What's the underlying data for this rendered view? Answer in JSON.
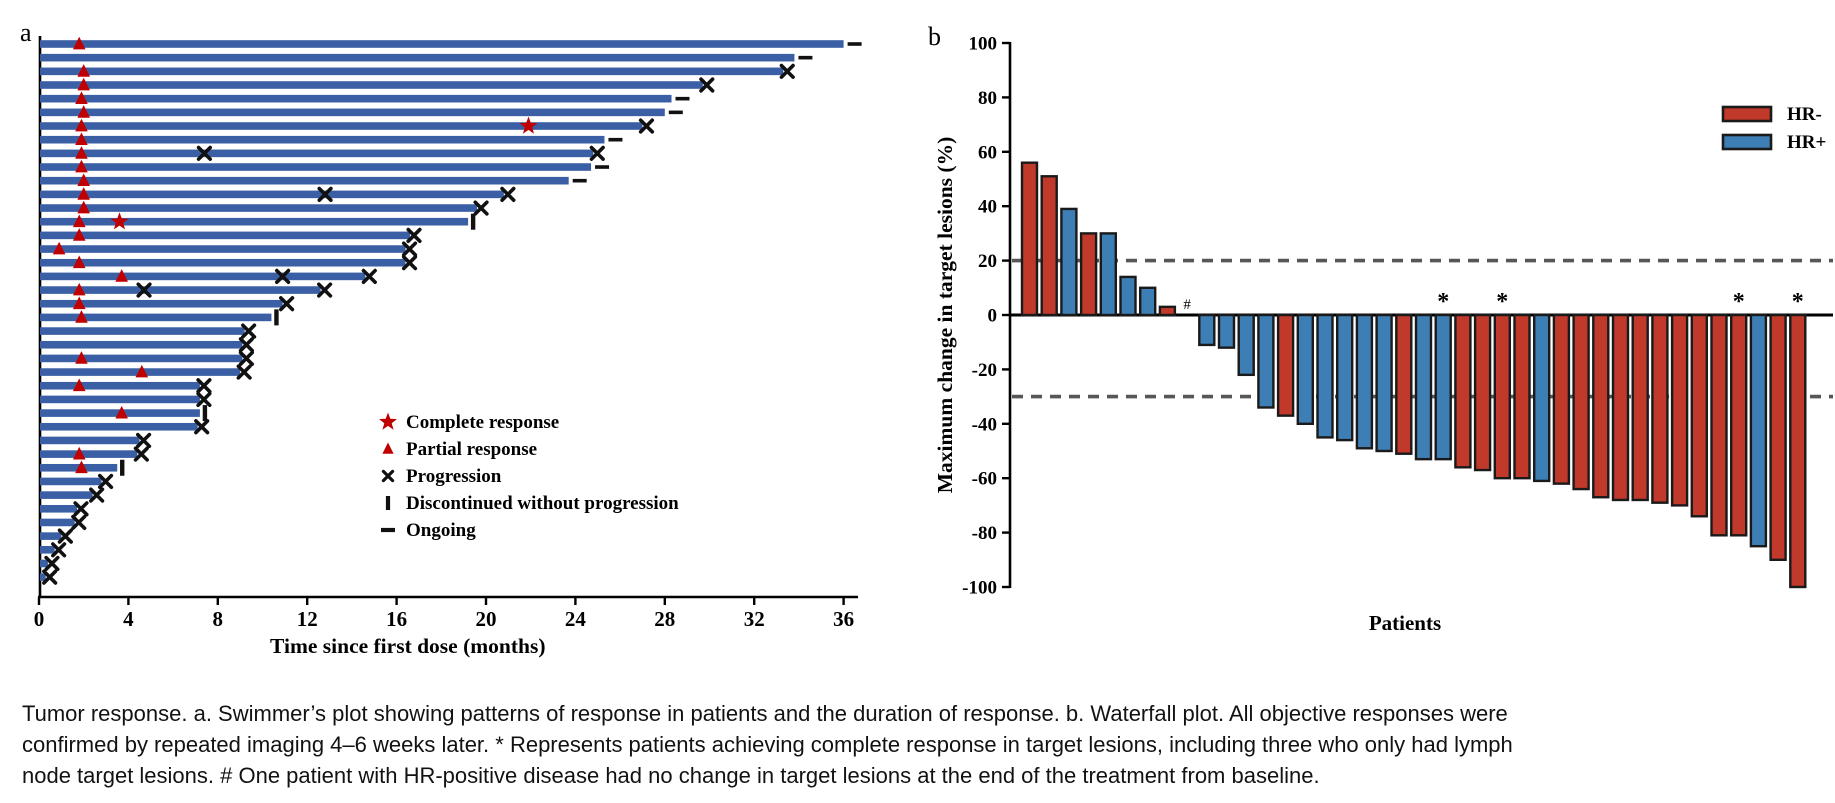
{
  "figure": {
    "panel_a_label": "a",
    "panel_b_label": "b"
  },
  "caption": {
    "text": "Tumor response. a. Swimmer’s plot showing patterns of response in patients and the duration of response. b. Waterfall plot. All objective responses were confirmed by repeated imaging 4–6 weeks later. * Represents patients achieving complete response in target lesions, including three who only had lymph node target lesions. # One patient with HR-positive disease had no change in target lesions at the end of the treatment from baseline."
  },
  "chart_data": [
    {
      "type": "swimmer",
      "panel": "a",
      "xlabel": "Time since first dose (months)",
      "x_ticks": [
        0,
        4,
        8,
        12,
        16,
        20,
        24,
        28,
        32,
        36
      ],
      "xlim": [
        0,
        37
      ],
      "bar_color": "#3A5FA5",
      "marker_red": "#C00000",
      "mark_black": "#111111",
      "legend": [
        {
          "symbol": "star",
          "label": "Complete response"
        },
        {
          "symbol": "triangle",
          "label": "Partial response"
        },
        {
          "symbol": "x",
          "label": "Progression"
        },
        {
          "symbol": "bar",
          "label": "Discontinued without progression"
        },
        {
          "symbol": "dash",
          "label": "Ongoing"
        }
      ],
      "patients": [
        {
          "m": 36.0,
          "end": "ongoing",
          "tri": 1.8
        },
        {
          "m": 33.8,
          "end": "ongoing"
        },
        {
          "m": 33.3,
          "end": "prog",
          "tri": 2.0
        },
        {
          "m": 29.7,
          "end": "prog",
          "tri": 2.0
        },
        {
          "m": 28.3,
          "end": "ongoing",
          "tri": 1.9
        },
        {
          "m": 28.0,
          "end": "ongoing",
          "tri": 2.0
        },
        {
          "m": 27.0,
          "end": "prog",
          "tri": 1.9,
          "star": 21.9
        },
        {
          "m": 25.3,
          "end": "ongoing",
          "tri": 1.9
        },
        {
          "m": 24.8,
          "end": "prog",
          "tri": 1.9,
          "xm": 7.4
        },
        {
          "m": 24.7,
          "end": "ongoing",
          "tri": 1.9
        },
        {
          "m": 23.7,
          "end": "ongoing",
          "tri": 2.0
        },
        {
          "m": 20.8,
          "end": "prog",
          "tri": 2.0,
          "xm": 12.8
        },
        {
          "m": 19.6,
          "end": "prog",
          "tri": 2.0
        },
        {
          "m": 19.2,
          "end": "disc",
          "tri": 1.8,
          "star": 3.6
        },
        {
          "m": 16.6,
          "end": "prog",
          "tri": 1.8
        },
        {
          "m": 16.4,
          "end": "prog",
          "tri": 0.9
        },
        {
          "m": 16.4,
          "end": "prog",
          "tri": 1.8
        },
        {
          "m": 14.6,
          "end": "prog",
          "tri": 3.7,
          "xm": 10.9
        },
        {
          "m": 12.6,
          "end": "prog",
          "tri": 1.8,
          "xm": 4.7
        },
        {
          "m": 10.9,
          "end": "prog",
          "tri": 1.8
        },
        {
          "m": 10.4,
          "end": "disc",
          "tri": 1.9
        },
        {
          "m": 9.2,
          "end": "prog"
        },
        {
          "m": 9.1,
          "end": "prog"
        },
        {
          "m": 9.1,
          "end": "prog",
          "tri": 1.9
        },
        {
          "m": 9.0,
          "end": "prog",
          "tri": 4.6
        },
        {
          "m": 7.2,
          "end": "prog",
          "tri": 1.8
        },
        {
          "m": 7.2,
          "end": "prog"
        },
        {
          "m": 7.2,
          "end": "disc",
          "tri": 3.7
        },
        {
          "m": 7.1,
          "end": "prog"
        },
        {
          "m": 4.5,
          "end": "prog"
        },
        {
          "m": 4.4,
          "end": "prog",
          "tri": 1.8
        },
        {
          "m": 3.5,
          "end": "disc",
          "tri": 1.9
        },
        {
          "m": 2.8,
          "end": "prog"
        },
        {
          "m": 2.4,
          "end": "prog"
        },
        {
          "m": 1.7,
          "end": "prog"
        },
        {
          "m": 1.6,
          "end": "prog"
        },
        {
          "m": 1.0,
          "end": "prog"
        },
        {
          "m": 0.7,
          "end": "prog"
        },
        {
          "m": 0.4,
          "end": "prog"
        },
        {
          "m": 0.3,
          "end": "prog"
        }
      ]
    },
    {
      "type": "waterfall",
      "panel": "b",
      "ylabel": "Maximum change in target lesions (%)",
      "xlabel": "Patients",
      "ylim": [
        -100,
        100
      ],
      "y_ticks": [
        100,
        80,
        60,
        40,
        20,
        0,
        -20,
        -40,
        -60,
        -80,
        -100
      ],
      "ref_lines": [
        20,
        -30
      ],
      "ref_color": "#575757",
      "bar_stroke": "#1A1A1A",
      "legend": [
        {
          "label": "HR-",
          "color": "#C0392B"
        },
        {
          "label": "HR+",
          "color": "#3D7EB4"
        }
      ],
      "groups": {
        "HR-": "#C0392B",
        "HR+": "#3D7EB4"
      },
      "bars": [
        {
          "v": 56,
          "g": "HR-"
        },
        {
          "v": 51,
          "g": "HR-"
        },
        {
          "v": 39,
          "g": "HR+"
        },
        {
          "v": 30,
          "g": "HR-"
        },
        {
          "v": 30,
          "g": "HR+"
        },
        {
          "v": 14,
          "g": "HR+"
        },
        {
          "v": 10,
          "g": "HR+"
        },
        {
          "v": 3,
          "g": "HR-"
        },
        {
          "v": 0,
          "g": "HR+",
          "mark": "#"
        },
        {
          "v": -11,
          "g": "HR+"
        },
        {
          "v": -12,
          "g": "HR+"
        },
        {
          "v": -22,
          "g": "HR+"
        },
        {
          "v": -34,
          "g": "HR+"
        },
        {
          "v": -37,
          "g": "HR-"
        },
        {
          "v": -40,
          "g": "HR+"
        },
        {
          "v": -45,
          "g": "HR+"
        },
        {
          "v": -46,
          "g": "HR+"
        },
        {
          "v": -49,
          "g": "HR+"
        },
        {
          "v": -50,
          "g": "HR+"
        },
        {
          "v": -51,
          "g": "HR-"
        },
        {
          "v": -53,
          "g": "HR+"
        },
        {
          "v": -53,
          "g": "HR+",
          "mark": "*"
        },
        {
          "v": -56,
          "g": "HR-"
        },
        {
          "v": -57,
          "g": "HR-"
        },
        {
          "v": -60,
          "g": "HR-",
          "mark": "*"
        },
        {
          "v": -60,
          "g": "HR-"
        },
        {
          "v": -61,
          "g": "HR+"
        },
        {
          "v": -62,
          "g": "HR-"
        },
        {
          "v": -64,
          "g": "HR-"
        },
        {
          "v": -67,
          "g": "HR-"
        },
        {
          "v": -68,
          "g": "HR-"
        },
        {
          "v": -68,
          "g": "HR-"
        },
        {
          "v": -69,
          "g": "HR-"
        },
        {
          "v": -70,
          "g": "HR-"
        },
        {
          "v": -74,
          "g": "HR-"
        },
        {
          "v": -81,
          "g": "HR-"
        },
        {
          "v": -81,
          "g": "HR-",
          "mark": "*"
        },
        {
          "v": -85,
          "g": "HR+"
        },
        {
          "v": -90,
          "g": "HR-"
        },
        {
          "v": -100,
          "g": "HR-",
          "mark": "*"
        }
      ]
    }
  ]
}
